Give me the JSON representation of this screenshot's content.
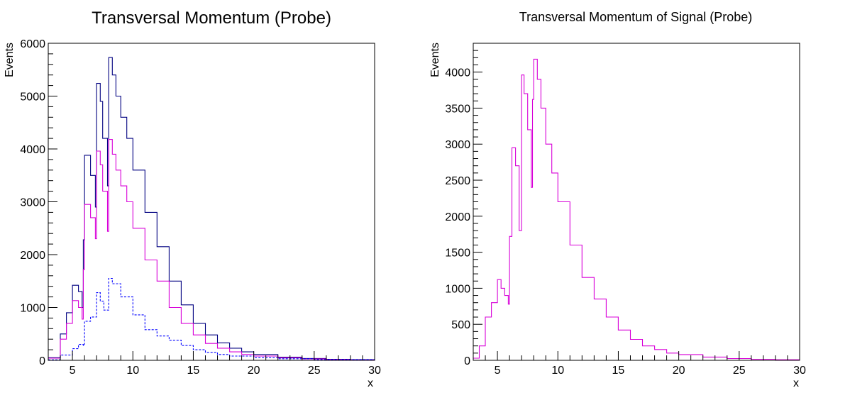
{
  "chart_data": [
    {
      "type": "line",
      "title": "Transversal Momentum (Probe)",
      "xlabel": "x",
      "ylabel": "Events",
      "xlim": [
        3,
        30
      ],
      "ylim": [
        0,
        6000
      ],
      "xticks": [
        5,
        10,
        15,
        20,
        25,
        30
      ],
      "xtick_labels": [
        "5",
        "10",
        "15",
        "20",
        "25",
        "30"
      ],
      "yticks": [
        0,
        1000,
        2000,
        3000,
        4000,
        5000,
        6000
      ],
      "ytick_labels": [
        "0",
        "1000",
        "2000",
        "3000",
        "4000",
        "5000",
        "6000"
      ],
      "grid": false,
      "legend": "none",
      "series": [
        {
          "color": "#000080",
          "style": "solid",
          "x": [
            3,
            4,
            4.5,
            5,
            5.5,
            5.8,
            5.9,
            6,
            6.5,
            6.9,
            7,
            7.3,
            7.5,
            7.9,
            8,
            8.3,
            8.6,
            9,
            9.5,
            10,
            11,
            12,
            13,
            14,
            15,
            16,
            17,
            18,
            19,
            20,
            22,
            24,
            26,
            28,
            30
          ],
          "values": [
            50,
            500,
            900,
            1420,
            1300,
            1000,
            2280,
            3880,
            3500,
            2900,
            5240,
            4900,
            4200,
            3300,
            5730,
            5400,
            5000,
            4600,
            4200,
            3600,
            2800,
            2150,
            1500,
            1050,
            700,
            480,
            330,
            230,
            160,
            110,
            60,
            35,
            20,
            12,
            5
          ]
        },
        {
          "color": "#d800d8",
          "style": "solid",
          "x": [
            3,
            4,
            4.5,
            5,
            5.5,
            5.8,
            5.9,
            6,
            6.5,
            6.9,
            7,
            7.3,
            7.5,
            7.9,
            8,
            8.3,
            8.6,
            9,
            9.5,
            10,
            11,
            12,
            13,
            14,
            15,
            16,
            17,
            18,
            19,
            20,
            22,
            24,
            26,
            28,
            30
          ],
          "values": [
            40,
            400,
            700,
            1130,
            1000,
            780,
            1720,
            2950,
            2700,
            2300,
            3960,
            3700,
            3200,
            2440,
            4180,
            3900,
            3600,
            3300,
            3000,
            2500,
            1900,
            1500,
            1000,
            700,
            480,
            320,
            230,
            160,
            110,
            80,
            45,
            25,
            15,
            8,
            4
          ]
        },
        {
          "color": "#0000ff",
          "style": "dashed",
          "x": [
            3,
            4,
            5,
            5.5,
            5.9,
            6,
            6.5,
            7,
            7.3,
            7.6,
            8,
            8.3,
            9,
            10,
            11,
            12,
            13,
            14,
            15,
            16,
            17,
            18,
            20,
            22,
            25,
            30
          ],
          "values": [
            10,
            100,
            220,
            300,
            280,
            740,
            820,
            1280,
            1120,
            950,
            1550,
            1450,
            1200,
            860,
            580,
            460,
            380,
            280,
            200,
            150,
            110,
            80,
            50,
            30,
            15,
            3
          ]
        }
      ]
    },
    {
      "type": "line",
      "title": "Transversal Momentum of Signal (Probe)",
      "xlabel": "x",
      "ylabel": "Events",
      "xlim": [
        3,
        30
      ],
      "ylim": [
        0,
        4400
      ],
      "xticks": [
        5,
        10,
        15,
        20,
        25,
        30
      ],
      "xtick_labels": [
        "5",
        "10",
        "15",
        "20",
        "25",
        "30"
      ],
      "yticks": [
        0,
        500,
        1000,
        1500,
        2000,
        2500,
        3000,
        3500,
        4000
      ],
      "ytick_labels": [
        "0",
        "500",
        "1000",
        "1500",
        "2000",
        "2500",
        "3000",
        "3500",
        "4000"
      ],
      "grid": false,
      "legend": "none",
      "series": [
        {
          "color": "#d800d8",
          "style": "solid",
          "x": [
            3,
            3.5,
            4,
            4.5,
            5,
            5.3,
            5.6,
            5.9,
            6,
            6.2,
            6.5,
            6.8,
            7,
            7.2,
            7.5,
            7.8,
            7.9,
            8,
            8.3,
            8.6,
            9,
            9.5,
            10,
            11,
            12,
            13,
            14,
            15,
            16,
            17,
            18,
            19,
            20,
            22,
            24,
            26,
            28,
            30
          ],
          "values": [
            30,
            200,
            600,
            800,
            1120,
            1000,
            900,
            780,
            1720,
            2950,
            2700,
            1800,
            3960,
            3700,
            3200,
            2400,
            3620,
            4180,
            3900,
            3500,
            3000,
            2600,
            2200,
            1600,
            1150,
            850,
            600,
            420,
            290,
            200,
            150,
            100,
            80,
            45,
            25,
            15,
            8,
            4
          ]
        }
      ]
    }
  ]
}
